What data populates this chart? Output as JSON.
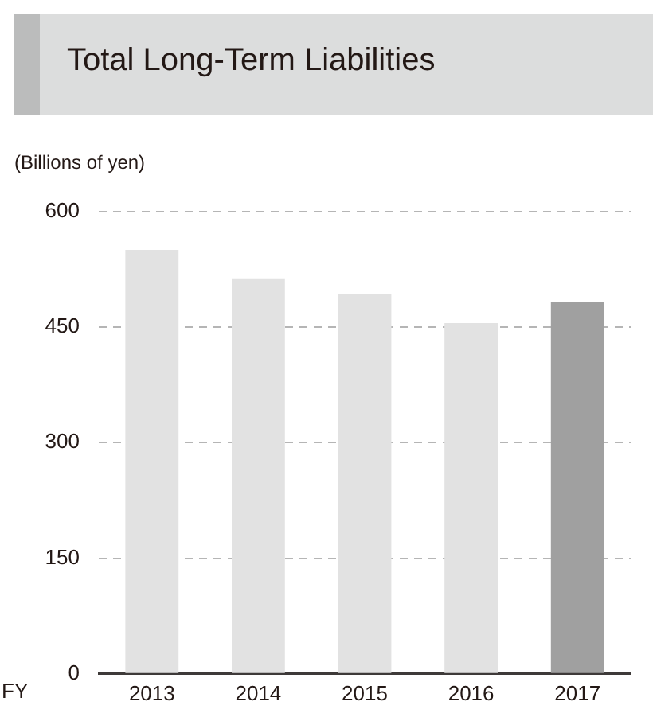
{
  "chart_data": {
    "type": "bar",
    "title": "Total Long-Term Liabilities",
    "ylabel": "(Billions of yen)",
    "xlabel": "FY",
    "categories": [
      "2013",
      "2014",
      "2015",
      "2016",
      "2017"
    ],
    "values": [
      550,
      513,
      493,
      455,
      483
    ],
    "colors": [
      "#e2e2e2",
      "#e2e2e2",
      "#e2e2e2",
      "#e2e2e2",
      "#a0a0a0"
    ],
    "ylim": [
      0,
      600
    ],
    "yticks": [
      0,
      150,
      300,
      450,
      600
    ],
    "grid": "y"
  }
}
